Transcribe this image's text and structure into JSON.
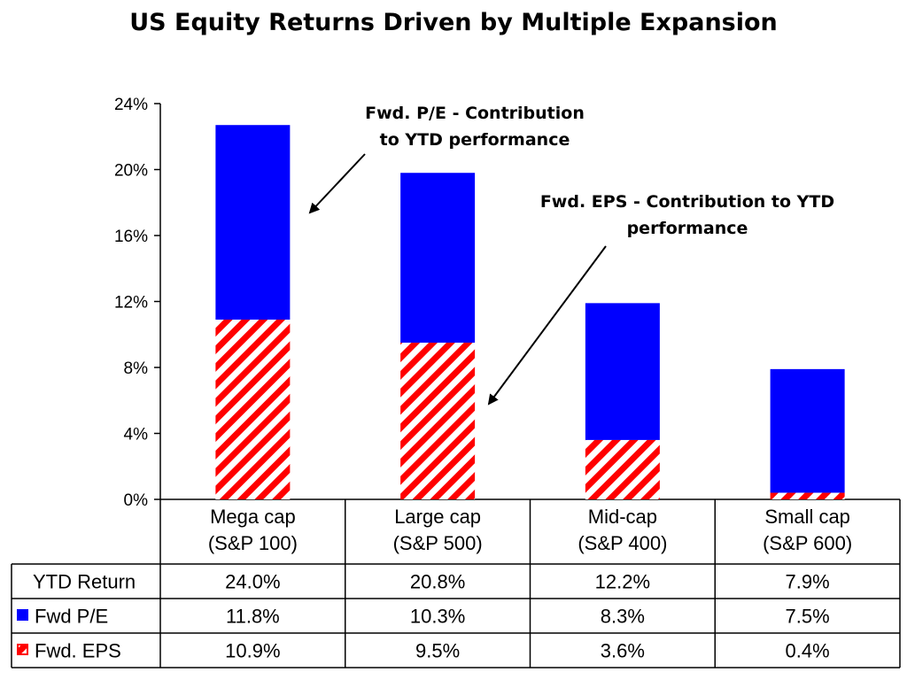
{
  "chart_data": {
    "type": "bar",
    "stacked": true,
    "title": "US Equity Returns Driven by Multiple Expansion",
    "categories": [
      [
        "Mega cap",
        "(S&P 100)"
      ],
      [
        "Large cap",
        "(S&P 500)"
      ],
      [
        "Mid-cap",
        "(S&P 400)"
      ],
      [
        "Small cap",
        "(S&P 600)"
      ]
    ],
    "series": [
      {
        "name": "Fwd. EPS",
        "values": [
          10.9,
          9.5,
          3.6,
          0.4
        ],
        "color": "#ff0000",
        "pattern": "diagonal-hatch"
      },
      {
        "name": "Fwd P/E",
        "values": [
          11.8,
          10.3,
          8.3,
          7.5
        ],
        "color": "#0000ff",
        "pattern": "solid"
      }
    ],
    "ylim": [
      0,
      24
    ],
    "yticks": [
      "0%",
      "4%",
      "8%",
      "12%",
      "16%",
      "20%",
      "24%"
    ],
    "ylabel": "",
    "xlabel": "",
    "annotations": [
      {
        "lines": [
          "Fwd. P/E - Contribution",
          "to YTD performance"
        ]
      },
      {
        "lines": [
          "Fwd. EPS - Contribution to YTD",
          "performance"
        ]
      }
    ],
    "table": {
      "rows": [
        {
          "label": "YTD Return",
          "values": [
            "24.0%",
            "20.8%",
            "12.2%",
            "7.9%"
          ]
        },
        {
          "label": "Fwd P/E",
          "values": [
            "11.8%",
            "10.3%",
            "8.3%",
            "7.5%"
          ]
        },
        {
          "label": "Fwd. EPS",
          "values": [
            "10.9%",
            "9.5%",
            "3.6%",
            "0.4%"
          ]
        }
      ]
    }
  },
  "colors": {
    "pe": "#0000ff",
    "eps": "#ff0000"
  }
}
